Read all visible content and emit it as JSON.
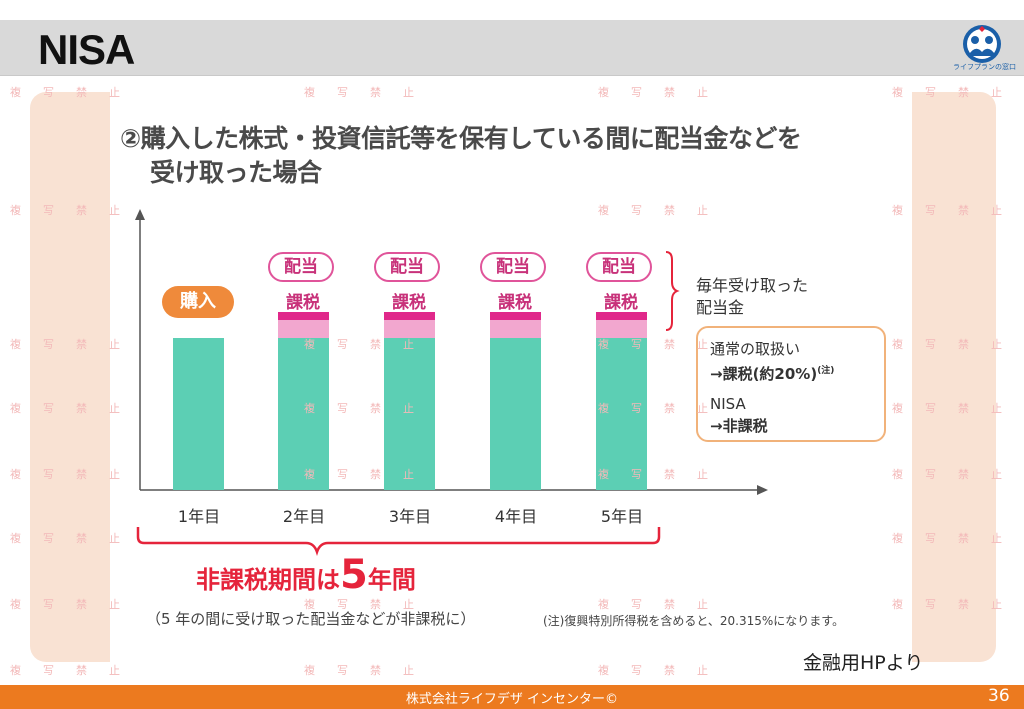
{
  "slide": {
    "title": "NISA",
    "page_number": "36"
  },
  "logo": {
    "text": "ライフプランの窓口"
  },
  "content": {
    "heading_line1": "②購入した株式・投資信託等を保有している間に配当金などを",
    "heading_line2": "受け取った場合",
    "purchase_label": "購入",
    "dividend_label": "配当",
    "tax_label": "課税",
    "years": [
      "1年目",
      "2年目",
      "3年目",
      "4年目",
      "5年目"
    ],
    "annotation_line1": "毎年受け取った",
    "annotation_line2": "配当金",
    "info_box": {
      "line1": "通常の取扱い",
      "line2": "→課税(約20%)",
      "note_mark": "(注)",
      "line3": "NISA",
      "line4": "→非課税"
    },
    "period_prefix": "非課税期間は",
    "period_number": "5",
    "period_suffix": "年間",
    "period_sub": "（5 年の間に受け取った配当金などが非課税に）",
    "footnote": "(注)復興特別所得税を含めると、20.315%になります。"
  },
  "source": "金融用HPより",
  "footer": {
    "text": "株式会社ライフデザ インセンター©"
  },
  "watermark": {
    "text": "複写禁止"
  },
  "colors": {
    "accent_orange": "#ec7a1f",
    "teal": "#5ccfb4",
    "pink_light": "#f2a7cf",
    "pink_dark": "#e0288a",
    "red": "#e5243b"
  }
}
